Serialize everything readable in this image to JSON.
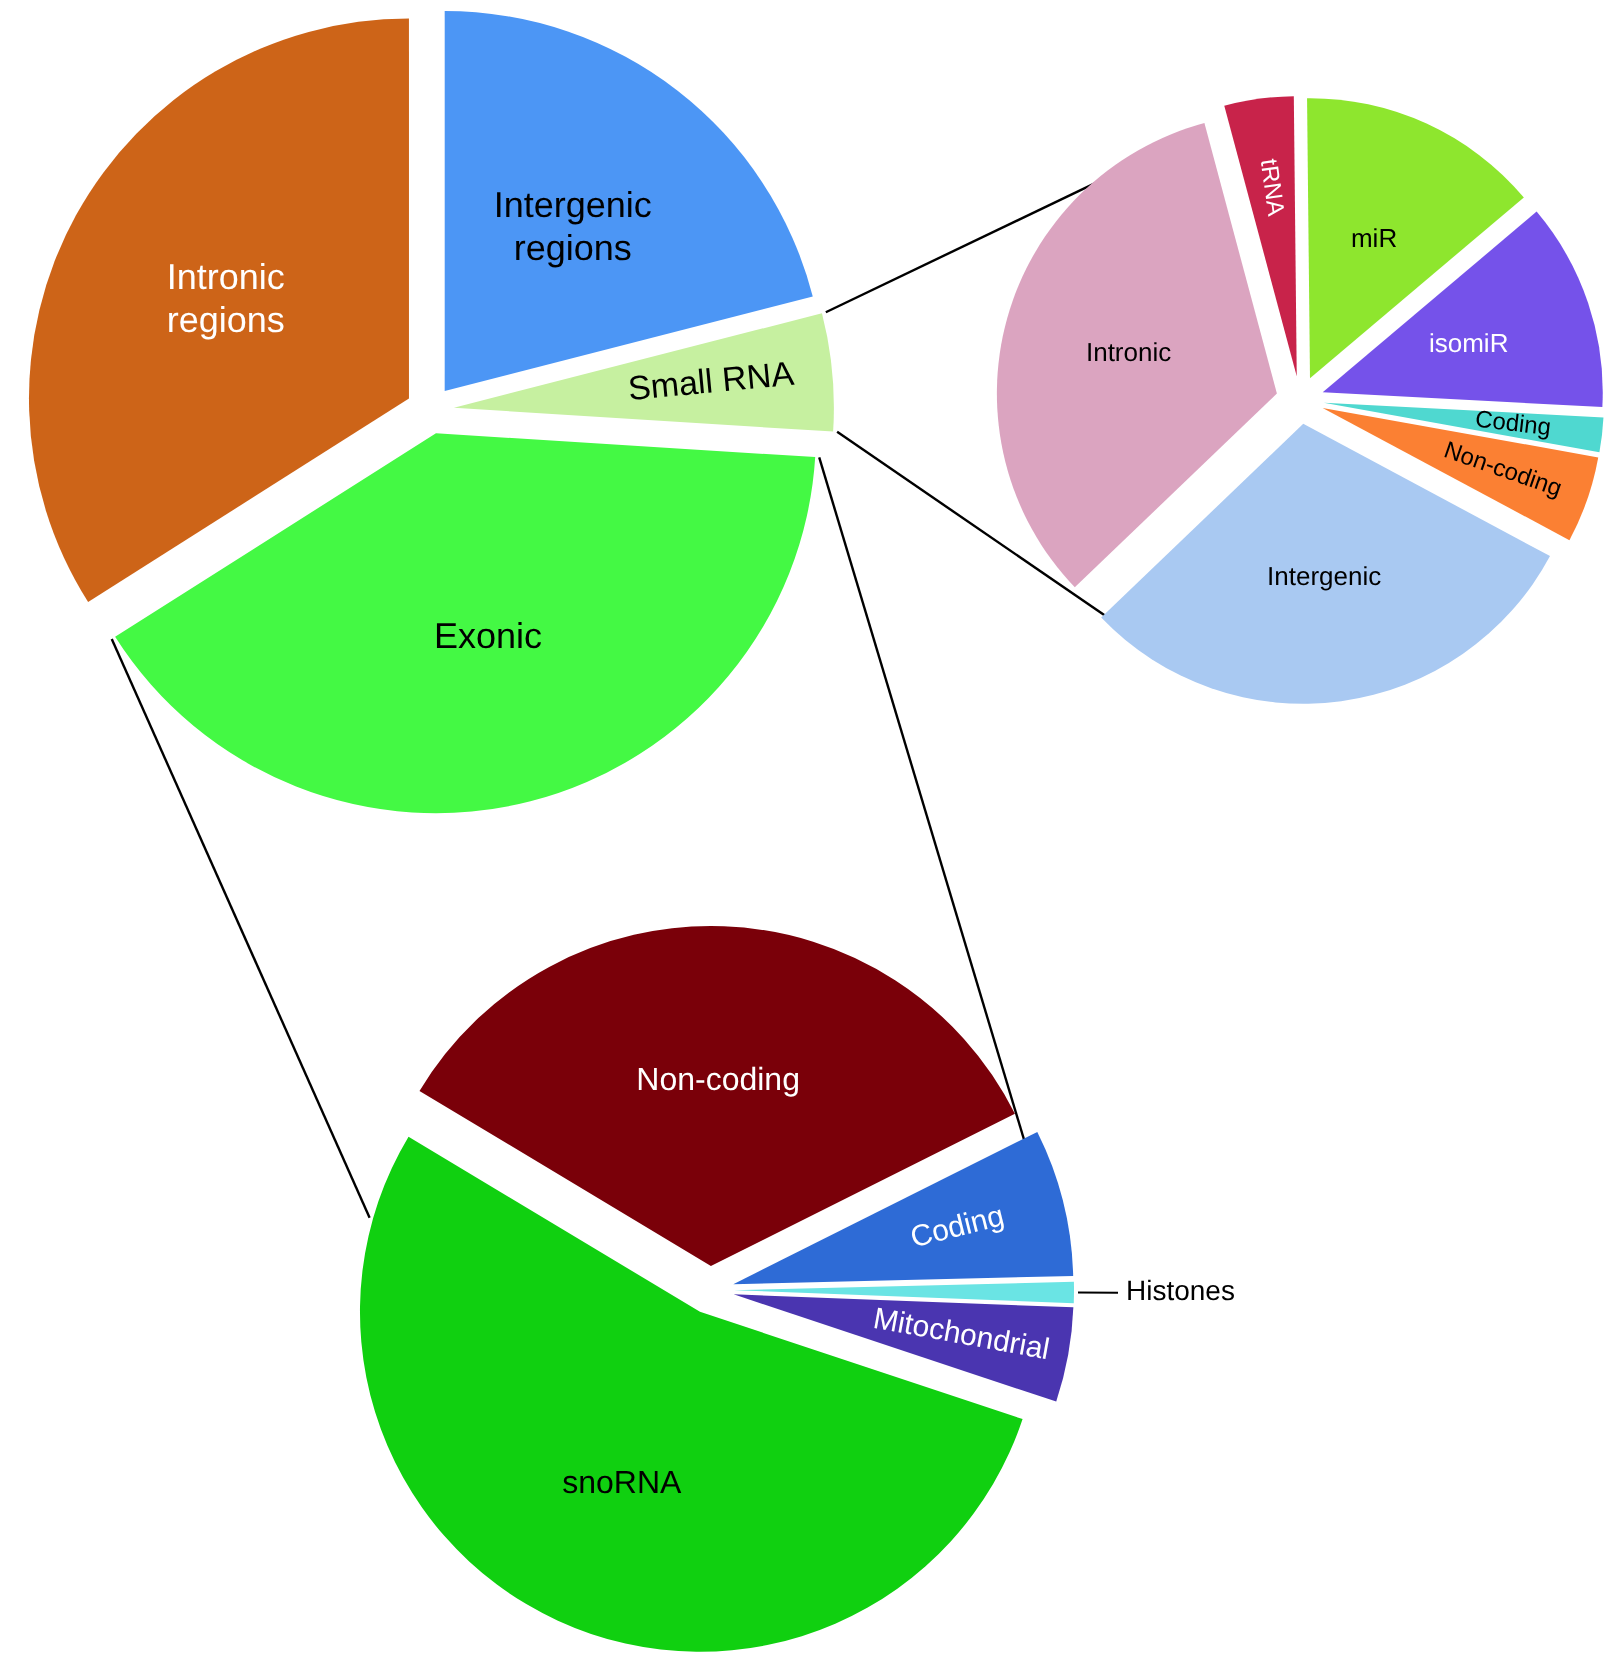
{
  "chart_data": [
    {
      "type": "pie",
      "categories": [
        "Intergenic regions",
        "Small RNA",
        "Exonic",
        "Intronic regions"
      ],
      "values": [
        21,
        5,
        40,
        34
      ],
      "colors": [
        "#4c96f5",
        "#c6f0a0",
        "#44f944",
        "#cd6418"
      ]
    },
    {
      "type": "pie",
      "categories": [
        "tRNA",
        "miR",
        "isomiR",
        "Coding",
        "Non-coding",
        "Intergenic",
        "Intronic"
      ],
      "values": [
        4,
        14,
        12,
        2,
        5,
        30,
        33
      ],
      "colors": [
        "#c8234a",
        "#8ee62e",
        "#7552ea",
        "#4fd8d0",
        "#fb8033",
        "#a9c9f2",
        "#dba4c0"
      ]
    },
    {
      "type": "pie",
      "categories": [
        "Non-coding",
        "Coding",
        "Histones",
        "Mitochondrial",
        "snoRNA"
      ],
      "values": [
        34,
        7,
        1,
        4.5,
        53.5
      ],
      "colors": [
        "#7a0009",
        "#2e6bd6",
        "#6ae4e4",
        "#4a35b0",
        "#10d010"
      ]
    }
  ]
}
